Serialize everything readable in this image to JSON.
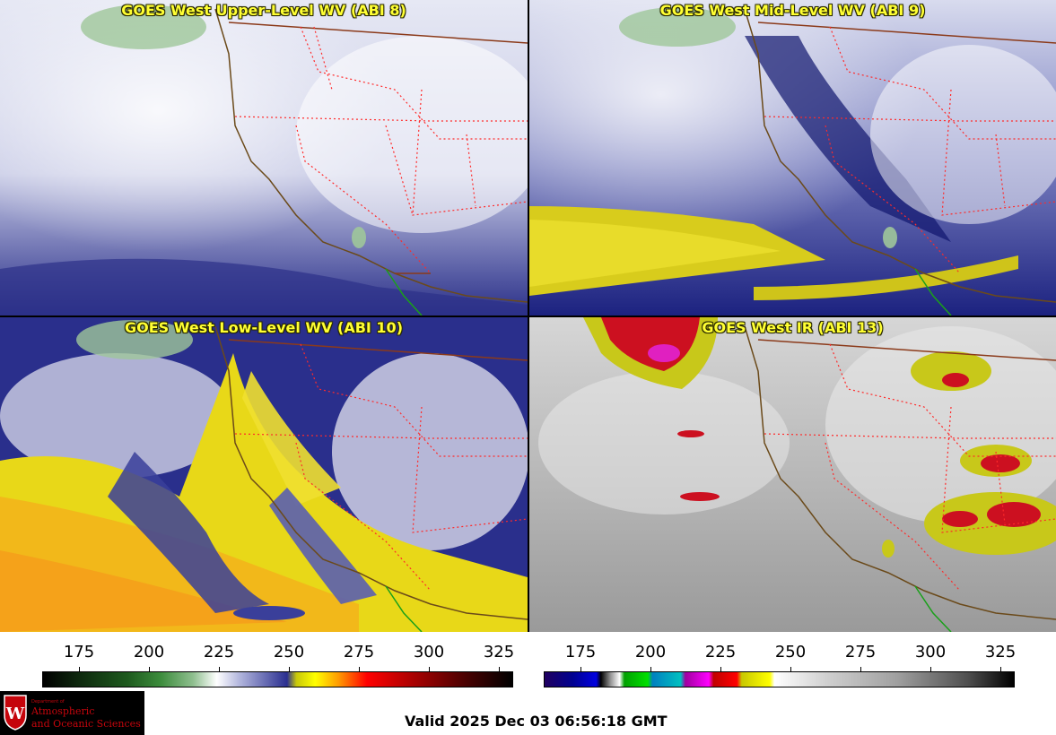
{
  "panels": [
    {
      "title": "GOES West Upper-Level WV (ABI 8)"
    },
    {
      "title": "GOES West Mid-Level WV (ABI 9)"
    },
    {
      "title": "GOES West Low-Level WV (ABI 10)"
    },
    {
      "title": "GOES West IR (ABI 13)"
    }
  ],
  "colorbars": {
    "left": {
      "ticks": [
        "175",
        "200",
        "225",
        "250",
        "275",
        "300",
        "325"
      ]
    },
    "right": {
      "ticks": [
        "175",
        "200",
        "225",
        "250",
        "275",
        "300",
        "325"
      ]
    }
  },
  "logo": {
    "dept_small": "Department of",
    "line1": "Atmospheric",
    "line2": "and Oceanic Sciences"
  },
  "valid_time": "Valid 2025 Dec 03 06:56:18 GMT",
  "colors": {
    "title_text": "#ffff33",
    "state_borders": "#ff2a2a",
    "coastline": "#6b4a1a",
    "intl_border": "#8b3a1a",
    "mexico_coast": "#1aa01a",
    "logo_red": "#c5050c"
  }
}
